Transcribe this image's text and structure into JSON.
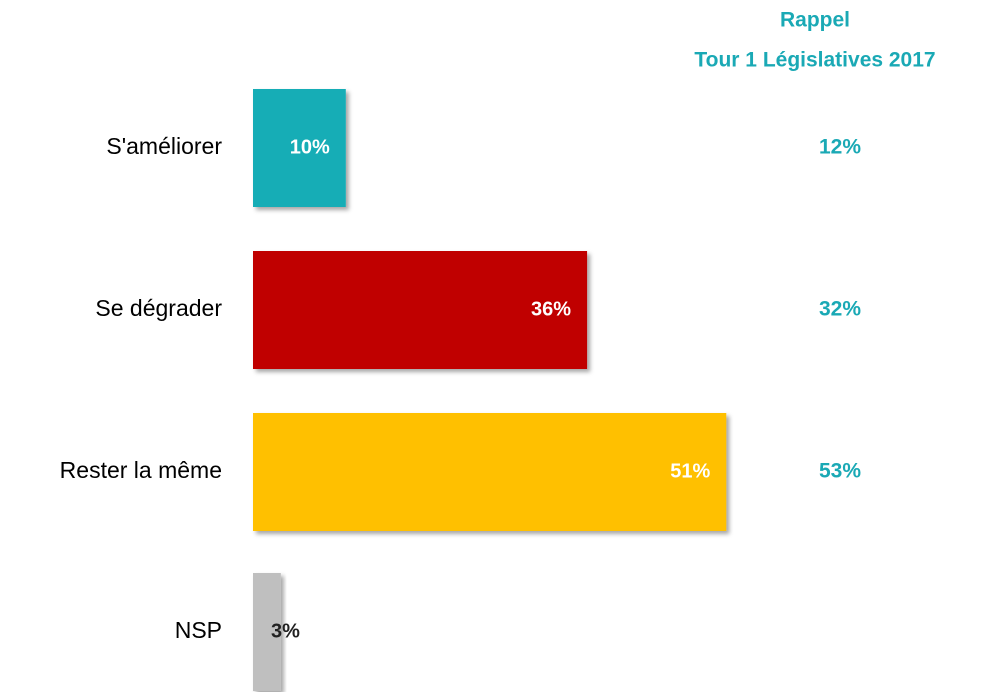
{
  "chart_data": {
    "type": "bar",
    "orientation": "horizontal",
    "categories": [
      "S'améliorer",
      "Se dégrader",
      "Rester la même",
      "NSP"
    ],
    "values": [
      10,
      36,
      51,
      3
    ],
    "value_labels": [
      "10%",
      "36%",
      "51%",
      "3%"
    ],
    "colors": [
      "#17adb6",
      "#c00000",
      "#ffc000",
      "#bfbfbf"
    ],
    "recall": {
      "title": [
        "Rappel",
        "Tour 1 Législatives 2017"
      ],
      "values": [
        12,
        32,
        53,
        null
      ],
      "value_labels": [
        "12%",
        "32%",
        "53%",
        null
      ],
      "color": "#1aa9b5"
    }
  }
}
